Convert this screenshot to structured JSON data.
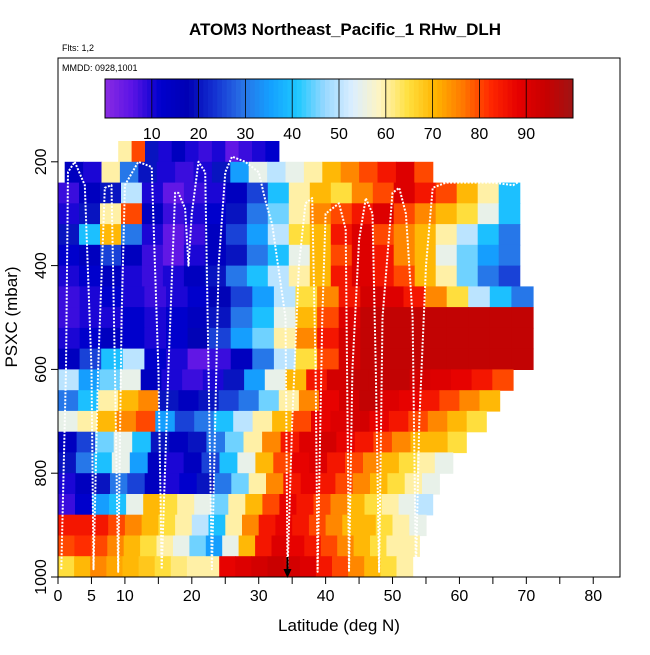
{
  "chart_data": {
    "type": "heatmap",
    "title": "ATOM3 Northeast_Pacific_1 RHw_DLH",
    "subtitle_flights": "Flts: 1,2",
    "subtitle_dates": "MMDD: 0928,1001",
    "xlabel": "Latitude (deg N)",
    "ylabel": "PSXC (mbar)",
    "xlim": [
      0,
      84
    ],
    "ylim": [
      1000,
      0
    ],
    "x_ticks": [
      0,
      5,
      10,
      20,
      30,
      40,
      50,
      60,
      70,
      80
    ],
    "y_ticks": [
      200,
      400,
      600,
      800,
      1000
    ],
    "colorbar": {
      "min": 0,
      "max": 100,
      "ticks": [
        10,
        20,
        30,
        40,
        50,
        60,
        70,
        80,
        90
      ],
      "colors": [
        "#8a2be2",
        "#5a14e6",
        "#0000cd",
        "#0000b4",
        "#1432d2",
        "#2872e6",
        "#14a0ff",
        "#1ec8ff",
        "#9ad8ff",
        "#dcefff",
        "#fff4c0",
        "#ffe040",
        "#ffb400",
        "#ff7800",
        "#ff2800",
        "#e60000",
        "#c80000",
        "#a01414"
      ]
    },
    "series": [
      {
        "name": "RHw rows (pressure mbar, latitude start/end, RHw values)",
        "rows": [
          {
            "p": 180,
            "lat0": 9,
            "lat1": 33,
            "values": [
              60,
              80,
              20,
              10,
              15,
              10,
              8,
              10,
              5,
              8,
              10,
              12
            ]
          },
          {
            "p": 220,
            "lat0": 1,
            "lat1": 56,
            "values": [
              15,
              10,
              60,
              30,
              20,
              10,
              8,
              10,
              20,
              35,
              55,
              50,
              55,
              60,
              70,
              75,
              80,
              85,
              90,
              80
            ]
          },
          {
            "p": 260,
            "lat0": 0,
            "lat1": 69,
            "values": [
              8,
              15,
              20,
              50,
              10,
              5,
              8,
              10,
              15,
              25,
              40,
              60,
              70,
              65,
              75,
              80,
              90,
              85,
              80,
              70,
              60,
              40
            ]
          },
          {
            "p": 300,
            "lat0": 0,
            "lat1": 69,
            "values": [
              10,
              20,
              60,
              80,
              15,
              8,
              10,
              12,
              20,
              30,
              45,
              60,
              75,
              80,
              85,
              90,
              80,
              75,
              70,
              65,
              55,
              40
            ]
          },
          {
            "p": 340,
            "lat0": 0,
            "lat1": 69,
            "values": [
              20,
              40,
              70,
              30,
              10,
              5,
              8,
              15,
              25,
              35,
              50,
              65,
              70,
              85,
              90,
              80,
              75,
              70,
              60,
              50,
              40,
              30
            ]
          },
          {
            "p": 380,
            "lat0": 0,
            "lat1": 69,
            "values": [
              12,
              15,
              25,
              15,
              8,
              5,
              10,
              15,
              20,
              30,
              40,
              55,
              70,
              80,
              90,
              85,
              75,
              70,
              55,
              45,
              35,
              30
            ]
          },
          {
            "p": 420,
            "lat0": 0,
            "lat1": 69,
            "values": [
              10,
              12,
              15,
              10,
              8,
              10,
              15,
              20,
              30,
              40,
              50,
              60,
              70,
              85,
              90,
              85,
              80,
              70,
              60,
              45,
              30,
              25
            ]
          },
          {
            "p": 460,
            "lat0": 0,
            "lat1": 71,
            "values": [
              8,
              10,
              12,
              10,
              8,
              10,
              12,
              18,
              25,
              35,
              50,
              65,
              75,
              85,
              92,
              90,
              85,
              75,
              65,
              50,
              40,
              30
            ]
          },
          {
            "p": 500,
            "lat0": 0,
            "lat1": 71,
            "values": [
              8,
              10,
              10,
              12,
              10,
              12,
              15,
              20,
              30,
              40,
              55,
              70,
              80,
              90,
              95,
              95,
              95,
              95,
              95,
              95,
              95,
              95
            ]
          },
          {
            "p": 540,
            "lat0": 0,
            "lat1": 71,
            "values": [
              10,
              12,
              15,
              12,
              10,
              12,
              18,
              25,
              35,
              45,
              60,
              75,
              85,
              92,
              95,
              95,
              95,
              95,
              95,
              95,
              95,
              95
            ]
          },
          {
            "p": 580,
            "lat0": 0,
            "lat1": 71,
            "values": [
              15,
              25,
              40,
              50,
              12,
              10,
              5,
              8,
              15,
              30,
              50,
              65,
              80,
              92,
              95,
              95,
              95,
              95,
              95,
              95,
              95,
              95
            ]
          },
          {
            "p": 620,
            "lat0": 0,
            "lat1": 68,
            "values": [
              50,
              35,
              45,
              55,
              15,
              10,
              8,
              10,
              20,
              35,
              55,
              70,
              85,
              92,
              95,
              95,
              95,
              92,
              90,
              88,
              85,
              80
            ]
          },
          {
            "p": 660,
            "lat0": 0,
            "lat1": 66,
            "values": [
              30,
              40,
              60,
              70,
              75,
              20,
              15,
              20,
              25,
              30,
              45,
              60,
              75,
              88,
              92,
              95,
              90,
              88,
              85,
              80,
              75,
              70
            ]
          },
          {
            "p": 700,
            "lat0": 0,
            "lat1": 64,
            "values": [
              55,
              60,
              70,
              75,
              80,
              35,
              25,
              30,
              40,
              50,
              60,
              70,
              80,
              88,
              90,
              92,
              88,
              85,
              80,
              75,
              70,
              65
            ]
          },
          {
            "p": 740,
            "lat0": 0,
            "lat1": 61,
            "values": [
              15,
              25,
              45,
              55,
              40,
              20,
              15,
              20,
              30,
              45,
              60,
              75,
              85,
              90,
              92,
              88,
              85,
              80,
              75,
              70,
              70,
              65
            ]
          },
          {
            "p": 780,
            "lat0": 0,
            "lat1": 59,
            "values": [
              20,
              30,
              40,
              55,
              35,
              15,
              10,
              15,
              25,
              40,
              55,
              70,
              80,
              88,
              90,
              85,
              80,
              75,
              70,
              65,
              60,
              55
            ]
          },
          {
            "p": 820,
            "lat0": 0,
            "lat1": 57,
            "values": [
              10,
              15,
              20,
              30,
              25,
              15,
              10,
              12,
              20,
              30,
              45,
              60,
              75,
              85,
              88,
              85,
              80,
              75,
              70,
              65,
              60,
              55
            ]
          },
          {
            "p": 860,
            "lat0": 0,
            "lat1": 56,
            "values": [
              8,
              12,
              35,
              40,
              55,
              70,
              65,
              60,
              55,
              45,
              60,
              70,
              80,
              88,
              85,
              80,
              75,
              70,
              65,
              60,
              55,
              50
            ]
          },
          {
            "p": 900,
            "lat0": 0,
            "lat1": 55,
            "values": [
              85,
              85,
              85,
              80,
              75,
              70,
              65,
              60,
              50,
              40,
              60,
              75,
              85,
              88,
              85,
              80,
              75,
              70,
              70,
              65,
              60,
              55
            ]
          },
          {
            "p": 940,
            "lat0": 0,
            "lat1": 54,
            "values": [
              80,
              82,
              80,
              75,
              70,
              65,
              60,
              55,
              45,
              35,
              55,
              70,
              85,
              90,
              88,
              85,
              80,
              75,
              70,
              65,
              60,
              60
            ]
          },
          {
            "p": 980,
            "lat0": 0,
            "lat1": 53,
            "values": [
              65,
              70,
              75,
              72,
              70,
              68,
              65,
              62,
              60,
              60,
              88,
              90,
              92,
              94,
              92,
              90,
              85,
              80,
              75,
              70,
              65,
              60
            ]
          }
        ]
      },
      {
        "name": "flight track (latitude, pressure mbar)",
        "points": [
          [
            0.5,
            985
          ],
          [
            1.2,
            600
          ],
          [
            1.5,
            220
          ],
          [
            2.5,
            200
          ],
          [
            4,
            245
          ],
          [
            5,
            600
          ],
          [
            5.3,
            985
          ],
          [
            6,
            600
          ],
          [
            7,
            250
          ],
          [
            8,
            245
          ],
          [
            8.5,
            600
          ],
          [
            9,
            990
          ],
          [
            9.5,
            500
          ],
          [
            10,
            245
          ],
          [
            12,
            200
          ],
          [
            14,
            210
          ],
          [
            15,
            600
          ],
          [
            15.5,
            985
          ],
          [
            16.5,
            600
          ],
          [
            17.5,
            260
          ],
          [
            18,
            260
          ],
          [
            19,
            290
          ],
          [
            19.5,
            400
          ],
          [
            20,
            300
          ],
          [
            21,
            200
          ],
          [
            22,
            220
          ],
          [
            23,
            985
          ],
          [
            23.5,
            700
          ],
          [
            24,
            400
          ],
          [
            25,
            220
          ],
          [
            26,
            190
          ],
          [
            28,
            200
          ],
          [
            30,
            220
          ],
          [
            31,
            275
          ],
          [
            32,
            320
          ],
          [
            34,
            500
          ],
          [
            34.3,
            990
          ],
          [
            35,
            700
          ],
          [
            36,
            400
          ],
          [
            37,
            280
          ],
          [
            38,
            270
          ],
          [
            38.5,
            600
          ],
          [
            38.8,
            990
          ],
          [
            39.5,
            500
          ],
          [
            40,
            300
          ],
          [
            42,
            280
          ],
          [
            43,
            330
          ],
          [
            43.5,
            990
          ],
          [
            44,
            600
          ],
          [
            45,
            350
          ],
          [
            46,
            270
          ],
          [
            47,
            300
          ],
          [
            47.5,
            600
          ],
          [
            48,
            990
          ],
          [
            48.5,
            500
          ],
          [
            50,
            260
          ],
          [
            51,
            250
          ],
          [
            52,
            300
          ],
          [
            53,
            500
          ],
          [
            53.5,
            990
          ],
          [
            54,
            700
          ],
          [
            55,
            400
          ],
          [
            56,
            250
          ],
          [
            58,
            240
          ],
          [
            60,
            240
          ],
          [
            65,
            240
          ],
          [
            68,
            245
          ],
          [
            70,
            230
          ]
        ]
      }
    ],
    "annotations": [
      {
        "type": "arrow",
        "latitude": 34.3,
        "pressure": 1000,
        "direction": "down"
      }
    ]
  }
}
